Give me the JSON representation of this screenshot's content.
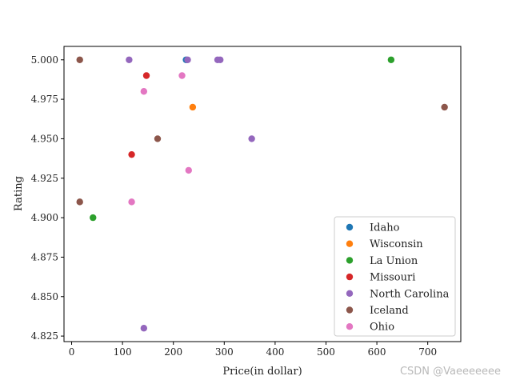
{
  "chart_data": {
    "type": "scatter",
    "title": "",
    "xlabel": "Price(in dollar)",
    "ylabel": "Rating",
    "xlim": [
      -15,
      765
    ],
    "ylim": [
      4.8215,
      5.0085
    ],
    "xticks": [
      0,
      100,
      200,
      300,
      400,
      500,
      600,
      700
    ],
    "yticks": [
      4.825,
      4.85,
      4.875,
      4.9,
      4.925,
      4.95,
      4.975,
      5.0
    ],
    "ytick_labels": [
      "4.825",
      "4.850",
      "4.875",
      "4.900",
      "4.925",
      "4.950",
      "4.975",
      "5.000"
    ],
    "grid": false,
    "legend_position": "lower-right",
    "series": [
      {
        "name": "Idaho",
        "color": "#1f77b4",
        "points": [
          [
            225,
            5.0
          ]
        ]
      },
      {
        "name": "Wisconsin",
        "color": "#ff7f0e",
        "points": [
          [
            238,
            4.97
          ]
        ]
      },
      {
        "name": "La Union",
        "color": "#2ca02c",
        "points": [
          [
            628,
            5.0
          ],
          [
            42,
            4.9
          ]
        ]
      },
      {
        "name": "Missouri",
        "color": "#d62728",
        "points": [
          [
            147,
            4.99
          ],
          [
            118,
            4.94
          ]
        ]
      },
      {
        "name": "North Carolina",
        "color": "#9467bd",
        "points": [
          [
            113,
            5.0
          ],
          [
            228,
            5.0
          ],
          [
            287,
            5.0
          ],
          [
            292,
            5.0
          ],
          [
            354,
            4.95
          ],
          [
            142,
            4.83
          ]
        ]
      },
      {
        "name": "Iceland",
        "color": "#8c564b",
        "points": [
          [
            16,
            5.0
          ],
          [
            733,
            4.97
          ],
          [
            169,
            4.95
          ],
          [
            16,
            4.91
          ]
        ]
      },
      {
        "name": "Ohio",
        "color": "#e377c2",
        "points": [
          [
            217,
            4.99
          ],
          [
            142,
            4.98
          ],
          [
            230,
            4.93
          ],
          [
            118,
            4.91
          ]
        ]
      }
    ]
  },
  "watermark": "CSDN @Vaeeeeeee"
}
